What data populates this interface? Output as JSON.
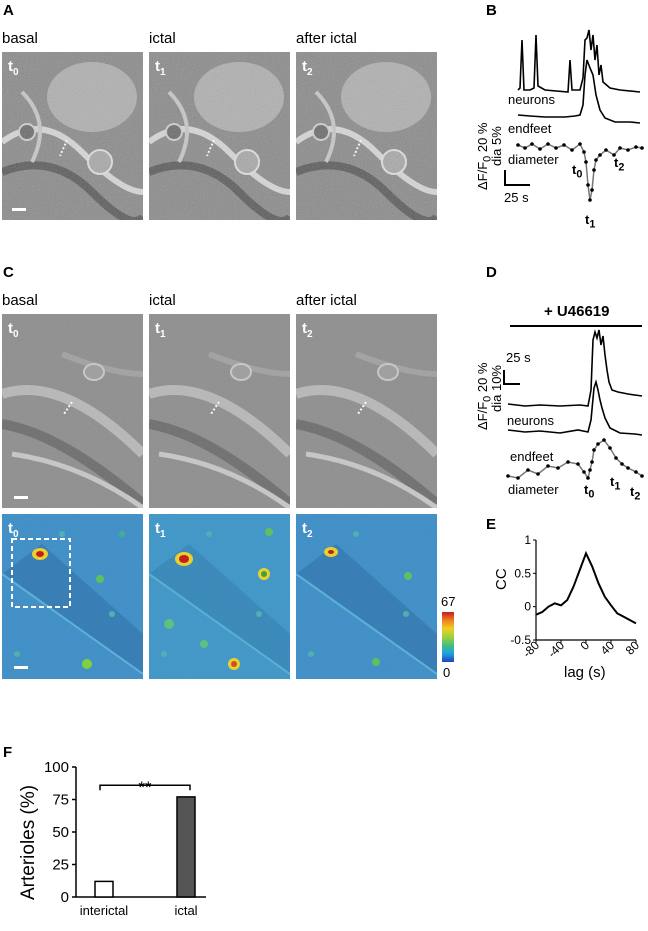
{
  "panels": {
    "A": {
      "letter": "A",
      "columns": [
        "basal",
        "ictal",
        "after ictal"
      ],
      "times": [
        "t",
        "t",
        "t"
      ],
      "time_subs": [
        "0",
        "1",
        "2"
      ]
    },
    "B": {
      "letter": "B",
      "trace_labels": [
        "neurons",
        "endfeet",
        "diameter"
      ],
      "y_scale_1": "ΔF/F",
      "y_scale_1_sub": "0",
      "y_scale_1_val": "20 %",
      "y_scale_2": "dia 5%",
      "x_scale": "25 s",
      "time_marks": [
        "t",
        "t",
        "t"
      ],
      "time_mark_subs": [
        "0",
        "1",
        "2"
      ]
    },
    "C": {
      "letter": "C",
      "columns": [
        "basal",
        "ictal",
        "after ictal"
      ],
      "times": [
        "t",
        "t",
        "t"
      ],
      "time_subs": [
        "0",
        "1",
        "2"
      ],
      "colorbar_max": "67",
      "colorbar_min": "0"
    },
    "D": {
      "letter": "D",
      "drug_label": "+ U46619",
      "trace_labels": [
        "neurons",
        "endfeet",
        "diameter"
      ],
      "y_scale_1": "ΔF/F",
      "y_scale_1_sub": "0",
      "y_scale_1_val": "20 %",
      "y_scale_2": "dia 10%",
      "x_scale": "25 s",
      "time_marks": [
        "t",
        "t",
        "t"
      ],
      "time_mark_subs": [
        "0",
        "1",
        "2"
      ]
    },
    "E": {
      "letter": "E",
      "ylabel": "CC",
      "xlabel": "lag (s)",
      "yticks": [
        "1",
        "0.5",
        "0",
        "-0.5"
      ],
      "xticks": [
        "-80",
        "-40",
        "0",
        "40",
        "80"
      ]
    },
    "F": {
      "letter": "F",
      "ylabel": "Arterioles (%)",
      "yticks": [
        "100",
        "75",
        "50",
        "25",
        "0"
      ],
      "categories": [
        "interictal",
        "ictal"
      ],
      "significance": "**"
    }
  },
  "chart_data": [
    {
      "type": "line",
      "panel": "E",
      "xlabel": "lag (s)",
      "ylabel": "CC",
      "xlim": [
        -80,
        80
      ],
      "ylim": [
        -0.5,
        1
      ],
      "x": [
        -80,
        -70,
        -60,
        -50,
        -40,
        -30,
        -20,
        -10,
        0,
        10,
        20,
        30,
        40,
        50,
        60,
        70,
        80
      ],
      "y": [
        -0.12,
        -0.08,
        0.0,
        0.05,
        0.02,
        0.1,
        0.3,
        0.55,
        0.8,
        0.6,
        0.35,
        0.15,
        0.02,
        -0.1,
        -0.15,
        -0.2,
        -0.25
      ]
    },
    {
      "type": "bar",
      "panel": "F",
      "categories": [
        "interictal",
        "ictal"
      ],
      "values": [
        12,
        77
      ],
      "ylabel": "Arterioles (%)",
      "ylim": [
        0,
        100
      ],
      "colors": [
        "#ffffff",
        "#555555"
      ]
    }
  ]
}
